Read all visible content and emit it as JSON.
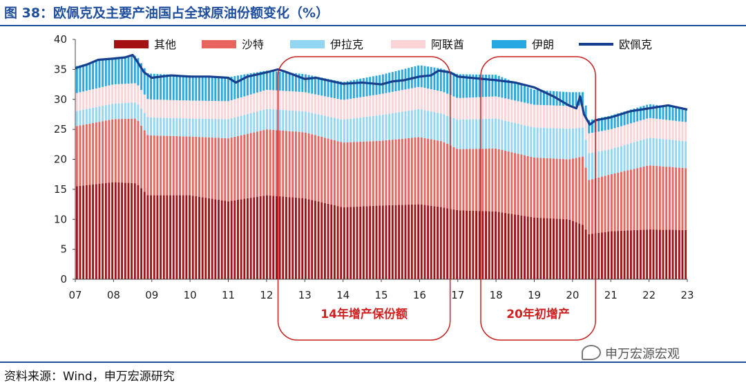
{
  "figure": {
    "title": "图 38：欧佩克及主要产油国占全球原油份额变化（%）",
    "source": "资料来源：Wind，申万宏源研究",
    "watermark": "申万宏源宏观"
  },
  "colors": {
    "其他": "#a40f14",
    "沙特": "#e8645f",
    "伊拉克": "#93d6f4",
    "阿联酋": "#fad3d7",
    "伊朗": "#27a8e0",
    "欧佩克": "#163f8e",
    "annotation": "#c81f1f",
    "title": "#1f4e9c"
  },
  "chart_data": {
    "type": "bar",
    "stacked": true,
    "ylim": [
      0,
      40
    ],
    "yticks": [
      0,
      5,
      10,
      15,
      20,
      25,
      30,
      35,
      40
    ],
    "xlim": [
      2007,
      2023
    ],
    "xticks": [
      "07",
      "08",
      "09",
      "10",
      "11",
      "12",
      "13",
      "14",
      "15",
      "16",
      "17",
      "18",
      "19",
      "20",
      "21",
      "22",
      "23"
    ],
    "legend_position": "top",
    "grid": false,
    "series": [
      {
        "name": "其他",
        "kind": "bar",
        "x": [
          2007.0,
          2008.0,
          2008.6,
          2008.9,
          2010.0,
          2011.0,
          2012.0,
          2013.0,
          2014.0,
          2015.0,
          2016.0,
          2016.6,
          2017.0,
          2018.0,
          2019.0,
          2019.9,
          2020.3,
          2020.4,
          2021.0,
          2022.0,
          2023.0
        ],
        "values": [
          15.5,
          16.2,
          16.0,
          14.0,
          14.0,
          13.0,
          14.0,
          13.5,
          12.0,
          12.3,
          12.5,
          12.0,
          11.5,
          11.3,
          10.3,
          10.0,
          9.0,
          7.5,
          8.0,
          8.3,
          8.2
        ]
      },
      {
        "name": "沙特",
        "kind": "bar",
        "x": [
          2007.0,
          2008.0,
          2008.6,
          2008.9,
          2010.0,
          2011.0,
          2012.0,
          2013.0,
          2014.0,
          2015.0,
          2016.0,
          2016.6,
          2017.0,
          2018.0,
          2019.0,
          2019.9,
          2020.3,
          2020.4,
          2021.0,
          2022.0,
          2023.0
        ],
        "values": [
          10.0,
          10.5,
          10.8,
          10.0,
          9.8,
          10.5,
          11.0,
          11.0,
          10.8,
          10.8,
          11.2,
          11.0,
          10.2,
          10.5,
          10.0,
          10.0,
          11.5,
          9.0,
          9.5,
          10.7,
          10.3
        ]
      },
      {
        "name": "伊拉克",
        "kind": "bar",
        "x": [
          2007.0,
          2008.0,
          2008.6,
          2008.9,
          2010.0,
          2011.0,
          2012.0,
          2013.0,
          2014.0,
          2015.0,
          2016.0,
          2016.6,
          2017.0,
          2018.0,
          2019.0,
          2019.9,
          2020.3,
          2020.4,
          2021.0,
          2022.0,
          2023.0
        ],
        "values": [
          2.5,
          2.6,
          2.7,
          3.0,
          3.0,
          3.2,
          3.4,
          3.5,
          3.8,
          4.3,
          4.7,
          4.6,
          4.9,
          5.0,
          5.0,
          5.1,
          4.8,
          4.5,
          4.2,
          4.6,
          4.5
        ]
      },
      {
        "name": "阿联酋",
        "kind": "bar",
        "x": [
          2007.0,
          2008.0,
          2008.6,
          2008.9,
          2010.0,
          2011.0,
          2012.0,
          2013.0,
          2014.0,
          2015.0,
          2016.0,
          2016.6,
          2017.0,
          2018.0,
          2019.0,
          2019.9,
          2020.3,
          2020.4,
          2021.0,
          2022.0,
          2023.0
        ],
        "values": [
          3.0,
          3.2,
          3.2,
          3.0,
          3.0,
          3.0,
          3.2,
          3.2,
          3.3,
          3.5,
          3.7,
          3.7,
          3.6,
          3.7,
          3.8,
          3.8,
          3.7,
          3.3,
          3.3,
          3.3,
          3.2
        ]
      },
      {
        "name": "伊朗",
        "kind": "bar",
        "x": [
          2007.0,
          2008.0,
          2008.6,
          2008.9,
          2010.0,
          2011.0,
          2012.0,
          2013.0,
          2014.0,
          2015.0,
          2016.0,
          2016.6,
          2017.0,
          2018.0,
          2019.0,
          2019.9,
          2020.3,
          2020.4,
          2021.0,
          2022.0,
          2023.0
        ],
        "values": [
          4.5,
          4.5,
          4.6,
          4.3,
          4.2,
          4.0,
          3.2,
          3.0,
          3.0,
          3.2,
          3.6,
          3.8,
          4.0,
          3.6,
          2.5,
          2.3,
          2.2,
          2.2,
          2.3,
          2.3,
          2.3
        ]
      },
      {
        "name": "欧佩克",
        "kind": "line",
        "x": [
          2007.0,
          2007.3,
          2007.6,
          2008.0,
          2008.3,
          2008.5,
          2008.6,
          2008.8,
          2009.0,
          2009.5,
          2010.0,
          2010.5,
          2011.0,
          2011.2,
          2011.5,
          2012.0,
          2012.3,
          2012.5,
          2013.0,
          2013.3,
          2014.0,
          2014.5,
          2015.0,
          2015.3,
          2015.6,
          2016.0,
          2016.3,
          2016.5,
          2016.8,
          2017.0,
          2017.5,
          2018.0,
          2018.5,
          2019.0,
          2019.5,
          2019.9,
          2020.1,
          2020.2,
          2020.3,
          2020.45,
          2020.6,
          2021.0,
          2021.5,
          2022.0,
          2022.5,
          2023.0
        ],
        "values": [
          35.2,
          35.8,
          36.6,
          36.8,
          37.0,
          37.4,
          36.5,
          34.5,
          33.6,
          34.0,
          33.8,
          33.8,
          33.6,
          32.8,
          33.8,
          34.5,
          35.0,
          34.6,
          33.4,
          33.6,
          32.6,
          32.8,
          32.5,
          33.0,
          33.2,
          33.8,
          34.0,
          34.8,
          34.5,
          33.8,
          33.5,
          33.2,
          32.8,
          32.0,
          30.5,
          29.0,
          28.5,
          30.5,
          27.5,
          25.8,
          26.5,
          27.0,
          28.0,
          28.5,
          29.0,
          28.3
        ]
      }
    ],
    "annotations": [
      {
        "label": "14年增产保份额",
        "x_range": [
          2012.3,
          2016.8
        ]
      },
      {
        "label": "20年初增产",
        "x_range": [
          2017.6,
          2020.6
        ]
      }
    ]
  }
}
